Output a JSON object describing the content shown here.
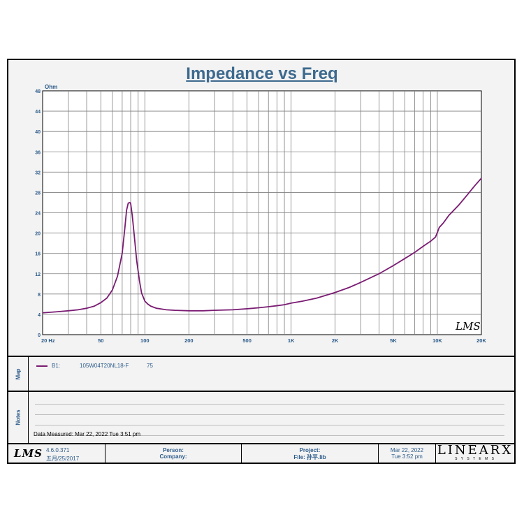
{
  "title": "Impedance vs Freq",
  "y_unit": "Ohm",
  "colors": {
    "curve": "#7a1c73",
    "grid": "#808080",
    "title": "#3d6a8e",
    "label": "#2c5b8a"
  },
  "chart_data": {
    "type": "line",
    "title": "Impedance vs Freq",
    "xlabel": "",
    "ylabel": "Ohm",
    "x_scale": "log",
    "xlim": [
      20,
      20000
    ],
    "ylim": [
      0,
      48
    ],
    "grid": true,
    "y_ticks": [
      0,
      4,
      8,
      12,
      16,
      20,
      24,
      28,
      32,
      36,
      40,
      44,
      48
    ],
    "x_ticks": [
      {
        "value": 20,
        "label": "20  Hz"
      },
      {
        "value": 50,
        "label": "50"
      },
      {
        "value": 100,
        "label": "100"
      },
      {
        "value": 200,
        "label": "200"
      },
      {
        "value": 500,
        "label": "500"
      },
      {
        "value": 1000,
        "label": "1K"
      },
      {
        "value": 2000,
        "label": "2K"
      },
      {
        "value": 5000,
        "label": "5K"
      },
      {
        "value": 10000,
        "label": "10K"
      },
      {
        "value": 20000,
        "label": "20K"
      }
    ],
    "series": [
      {
        "name": "105W04T20NL18-F",
        "x": [
          20,
          25,
          30,
          35,
          40,
          45,
          50,
          55,
          60,
          65,
          70,
          73,
          75,
          77,
          79,
          80,
          82,
          85,
          88,
          92,
          95,
          100,
          105,
          110,
          120,
          140,
          160,
          200,
          250,
          300,
          400,
          500,
          600,
          700,
          800,
          900,
          1000,
          1200,
          1500,
          2000,
          2500,
          3000,
          4000,
          5000,
          6000,
          7000,
          8000,
          9000,
          9700,
          10000,
          10300,
          11000,
          12000,
          14000,
          16000,
          18000,
          20000
        ],
        "values": [
          4.3,
          4.5,
          4.7,
          4.9,
          5.2,
          5.6,
          6.3,
          7.2,
          8.8,
          11.5,
          16.0,
          21.0,
          24.5,
          25.9,
          26.0,
          25.8,
          23.5,
          19.0,
          14.5,
          10.5,
          8.2,
          6.6,
          6.0,
          5.6,
          5.2,
          4.9,
          4.8,
          4.7,
          4.7,
          4.8,
          4.9,
          5.1,
          5.3,
          5.5,
          5.7,
          5.9,
          6.2,
          6.6,
          7.2,
          8.3,
          9.3,
          10.3,
          12.0,
          13.6,
          15.0,
          16.2,
          17.4,
          18.4,
          19.2,
          20.1,
          21.1,
          22.0,
          23.5,
          25.5,
          27.5,
          29.3,
          30.8
        ]
      }
    ]
  },
  "map": {
    "label": "Map",
    "legend_id": "B1:",
    "legend_name": "105W04T20NL18-F",
    "legend_value": "75"
  },
  "notes": {
    "label": "Notes",
    "measured": "Data Measured: Mar 22, 2022  Tue  3:51 pm"
  },
  "footer": {
    "lms_logo": "LMS",
    "version": "4.6.0.371",
    "version_date": "五月/25/2017",
    "person_label": "Person:",
    "company_label": "Company:",
    "project_label": "Project:",
    "file_label": "File: 孙平.lib",
    "date": "Mar 22, 2022",
    "time": "Tue  3:52 pm",
    "brand": "LINEARX",
    "brand_sub": "S Y S T E M S"
  },
  "watermark": "LMS"
}
